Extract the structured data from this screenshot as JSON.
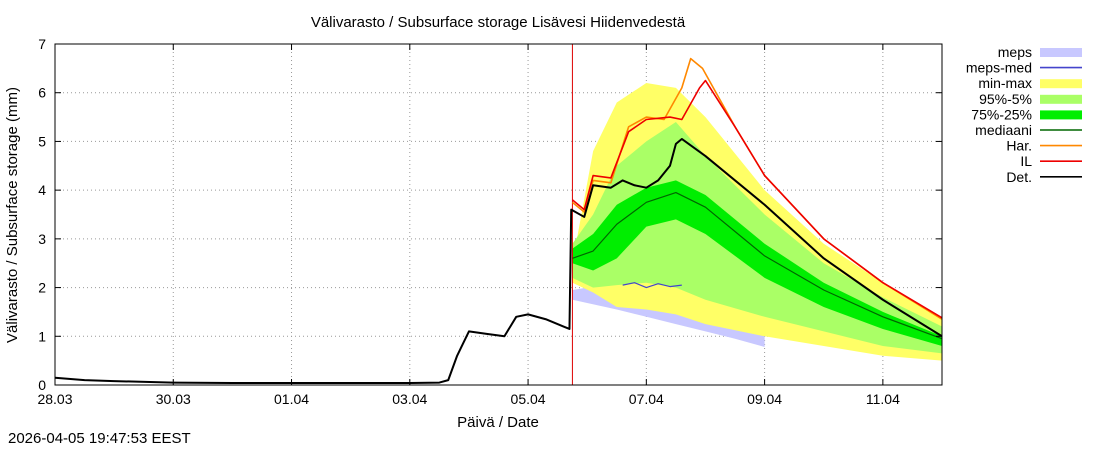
{
  "chart_data": {
    "type": "line",
    "title": "Välivarasto / Subsurface storage  Lisävesi Hiidenvedestä",
    "xlabel": "Päivä / Date",
    "ylabel": "Välivarasto / Subsurface storage (mm)",
    "x_unit": "days since 28.03 00:00",
    "xlim": [
      0,
      15
    ],
    "ylim": [
      0,
      7
    ],
    "x_ticks": [
      {
        "x": 0,
        "label": "28.03"
      },
      {
        "x": 2,
        "label": "30.03"
      },
      {
        "x": 4,
        "label": "01.04"
      },
      {
        "x": 6,
        "label": "03.04"
      },
      {
        "x": 8,
        "label": "05.04"
      },
      {
        "x": 10,
        "label": "07.04"
      },
      {
        "x": 12,
        "label": "09.04"
      },
      {
        "x": 14,
        "label": "11.04"
      }
    ],
    "y_ticks": [
      0,
      1,
      2,
      3,
      4,
      5,
      6,
      7
    ],
    "grid": true,
    "forecast_start_x": 8.75,
    "legend_position": "outside-right",
    "bands": [
      {
        "name": "meps",
        "color": "#c8c8ff",
        "upper": [
          [
            8.75,
            1.95
          ],
          [
            9.5,
            2.1
          ],
          [
            10,
            2.3
          ],
          [
            10.5,
            2.15
          ],
          [
            11,
            1.85
          ],
          [
            11.5,
            1.6
          ],
          [
            12,
            1.35
          ]
        ],
        "lower": [
          [
            8.75,
            1.75
          ],
          [
            9.5,
            1.55
          ],
          [
            10,
            1.4
          ],
          [
            10.5,
            1.25
          ],
          [
            11,
            1.1
          ],
          [
            11.5,
            0.95
          ],
          [
            12,
            0.78
          ]
        ]
      },
      {
        "name": "min-max",
        "color": "#ffff66",
        "upper": [
          [
            8.75,
            2.5
          ],
          [
            9.1,
            4.8
          ],
          [
            9.5,
            5.8
          ],
          [
            10,
            6.2
          ],
          [
            10.5,
            6.1
          ],
          [
            11,
            5.5
          ],
          [
            12,
            4.0
          ],
          [
            13,
            2.9
          ],
          [
            14,
            2.1
          ],
          [
            15,
            1.35
          ]
        ],
        "lower": [
          [
            8.75,
            2.1
          ],
          [
            9.1,
            1.9
          ],
          [
            9.5,
            1.6
          ],
          [
            10,
            1.55
          ],
          [
            10.5,
            1.45
          ],
          [
            11,
            1.25
          ],
          [
            12,
            1.0
          ],
          [
            13,
            0.8
          ],
          [
            14,
            0.6
          ],
          [
            15,
            0.5
          ]
        ]
      },
      {
        "name": "95%-5%",
        "color": "#aaff66",
        "upper": [
          [
            8.75,
            2.9
          ],
          [
            9.1,
            3.5
          ],
          [
            9.5,
            4.5
          ],
          [
            10,
            5.0
          ],
          [
            10.5,
            5.4
          ],
          [
            11,
            4.7
          ],
          [
            12,
            3.5
          ],
          [
            13,
            2.5
          ],
          [
            14,
            1.8
          ],
          [
            15,
            1.2
          ]
        ],
        "lower": [
          [
            8.75,
            2.2
          ],
          [
            9.1,
            2.0
          ],
          [
            9.5,
            2.05
          ],
          [
            10,
            2.1
          ],
          [
            10.5,
            2.0
          ],
          [
            11,
            1.75
          ],
          [
            12,
            1.4
          ],
          [
            13,
            1.1
          ],
          [
            14,
            0.8
          ],
          [
            15,
            0.65
          ]
        ]
      },
      {
        "name": "75%-25%",
        "color": "#00ee00",
        "upper": [
          [
            8.75,
            2.8
          ],
          [
            9.1,
            3.1
          ],
          [
            9.5,
            3.7
          ],
          [
            10,
            4.05
          ],
          [
            10.5,
            4.2
          ],
          [
            11,
            3.9
          ],
          [
            12,
            2.9
          ],
          [
            13,
            2.1
          ],
          [
            14,
            1.5
          ],
          [
            15,
            1.0
          ]
        ],
        "lower": [
          [
            8.75,
            2.5
          ],
          [
            9.1,
            2.35
          ],
          [
            9.5,
            2.6
          ],
          [
            10,
            3.25
          ],
          [
            10.5,
            3.4
          ],
          [
            11,
            3.1
          ],
          [
            12,
            2.2
          ],
          [
            13,
            1.6
          ],
          [
            14,
            1.15
          ],
          [
            15,
            0.8
          ]
        ]
      }
    ],
    "series": [
      {
        "name": "meps-med",
        "color": "#4444cc",
        "points": [
          [
            9.6,
            2.05
          ],
          [
            9.8,
            2.1
          ],
          [
            10,
            2.0
          ],
          [
            10.2,
            2.08
          ],
          [
            10.4,
            2.02
          ],
          [
            10.6,
            2.05
          ]
        ]
      },
      {
        "name": "mediaani",
        "color": "#006600",
        "points": [
          [
            8.75,
            2.6
          ],
          [
            9.1,
            2.75
          ],
          [
            9.5,
            3.3
          ],
          [
            10,
            3.75
          ],
          [
            10.5,
            3.95
          ],
          [
            11,
            3.65
          ],
          [
            12,
            2.65
          ],
          [
            13,
            1.95
          ],
          [
            14,
            1.4
          ],
          [
            15,
            0.95
          ]
        ]
      },
      {
        "name": "Har.",
        "color": "#ff8800",
        "points": [
          [
            8.75,
            3.75
          ],
          [
            8.95,
            3.55
          ],
          [
            9.1,
            4.2
          ],
          [
            9.4,
            4.15
          ],
          [
            9.7,
            5.3
          ],
          [
            10,
            5.5
          ],
          [
            10.3,
            5.45
          ],
          [
            10.6,
            6.1
          ],
          [
            10.75,
            6.7
          ],
          [
            10.95,
            6.5
          ],
          [
            11.5,
            5.3
          ],
          [
            12,
            4.3
          ],
          [
            13,
            3.0
          ],
          [
            14,
            2.1
          ],
          [
            15,
            1.35
          ]
        ]
      },
      {
        "name": "IL",
        "color": "#ee0000",
        "points": [
          [
            8.75,
            3.8
          ],
          [
            8.95,
            3.6
          ],
          [
            9.1,
            4.3
          ],
          [
            9.4,
            4.25
          ],
          [
            9.7,
            5.2
          ],
          [
            10,
            5.45
          ],
          [
            10.4,
            5.5
          ],
          [
            10.6,
            5.45
          ],
          [
            10.9,
            6.1
          ],
          [
            11,
            6.25
          ],
          [
            11.5,
            5.3
          ],
          [
            12,
            4.3
          ],
          [
            13,
            3.0
          ],
          [
            14,
            2.1
          ],
          [
            15,
            1.38
          ]
        ]
      },
      {
        "name": "Det.",
        "color": "#000000",
        "points": [
          [
            0,
            0.15
          ],
          [
            0.5,
            0.1
          ],
          [
            1,
            0.08
          ],
          [
            2,
            0.05
          ],
          [
            3,
            0.04
          ],
          [
            4,
            0.04
          ],
          [
            5,
            0.04
          ],
          [
            6,
            0.04
          ],
          [
            6.5,
            0.05
          ],
          [
            6.65,
            0.1
          ],
          [
            6.8,
            0.6
          ],
          [
            6.9,
            0.85
          ],
          [
            7.0,
            1.1
          ],
          [
            7.3,
            1.05
          ],
          [
            7.6,
            1.0
          ],
          [
            7.8,
            1.4
          ],
          [
            8.0,
            1.45
          ],
          [
            8.3,
            1.35
          ],
          [
            8.6,
            1.2
          ],
          [
            8.7,
            1.15
          ],
          [
            8.73,
            3.6
          ],
          [
            8.95,
            3.45
          ],
          [
            9.1,
            4.1
          ],
          [
            9.4,
            4.05
          ],
          [
            9.6,
            4.2
          ],
          [
            9.8,
            4.1
          ],
          [
            10,
            4.05
          ],
          [
            10.2,
            4.2
          ],
          [
            10.4,
            4.5
          ],
          [
            10.5,
            4.95
          ],
          [
            10.6,
            5.05
          ],
          [
            11,
            4.7
          ],
          [
            12,
            3.7
          ],
          [
            13,
            2.6
          ],
          [
            14,
            1.75
          ],
          [
            15,
            1.0
          ]
        ]
      }
    ],
    "legend": [
      {
        "label": "meps",
        "color": "#c8c8ff",
        "kind": "box"
      },
      {
        "label": "meps-med",
        "color": "#4444cc",
        "kind": "line"
      },
      {
        "label": "min-max",
        "color": "#ffff66",
        "kind": "box"
      },
      {
        "label": "95%-5%",
        "color": "#aaff66",
        "kind": "box"
      },
      {
        "label": "75%-25%",
        "color": "#00ee00",
        "kind": "box"
      },
      {
        "label": "mediaani",
        "color": "#006600",
        "kind": "line"
      },
      {
        "label": "Har.",
        "color": "#ff8800",
        "kind": "line"
      },
      {
        "label": "IL",
        "color": "#ee0000",
        "kind": "line"
      },
      {
        "label": "Det.",
        "color": "#000000",
        "kind": "line"
      }
    ]
  },
  "footer": {
    "timestamp": "2026-04-05 19:47:53 EEST"
  }
}
